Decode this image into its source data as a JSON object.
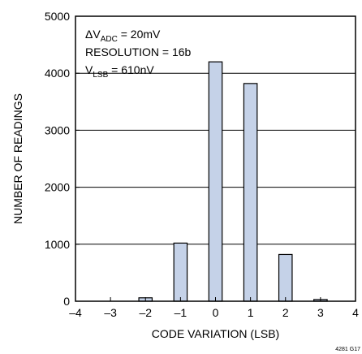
{
  "chart_data": {
    "type": "bar",
    "xlabel": "CODE VARIATION (LSB)",
    "ylabel": "NUMBER OF READINGS",
    "xlim": [
      -4,
      4
    ],
    "ylim": [
      0,
      5000
    ],
    "x_ticks": [
      -4,
      -3,
      -2,
      -1,
      0,
      1,
      2,
      3,
      4
    ],
    "x_tick_labels": [
      "–4",
      "–3",
      "–2",
      "–1",
      "0",
      "1",
      "2",
      "3",
      "4"
    ],
    "y_ticks": [
      0,
      1000,
      2000,
      3000,
      4000,
      5000
    ],
    "y_tick_labels": [
      "0",
      "1000",
      "2000",
      "3000",
      "4000",
      "5000"
    ],
    "grid": "horizontal",
    "bar_color": "#c5d2e8",
    "bar_stroke": "#000000",
    "categories": [
      -3,
      -2,
      -1,
      0,
      1,
      2,
      3
    ],
    "values": [
      0,
      60,
      1020,
      4200,
      3820,
      820,
      30
    ],
    "annotations": [
      {
        "main": "ΔV",
        "sub": "ADC",
        "tail": " = 20mV"
      },
      {
        "main": "RESOLUTION = 16b",
        "sub": "",
        "tail": ""
      },
      {
        "main": "V",
        "sub": "LSB",
        "tail": " = 610nV"
      }
    ]
  },
  "figure_id": "4281 G17"
}
